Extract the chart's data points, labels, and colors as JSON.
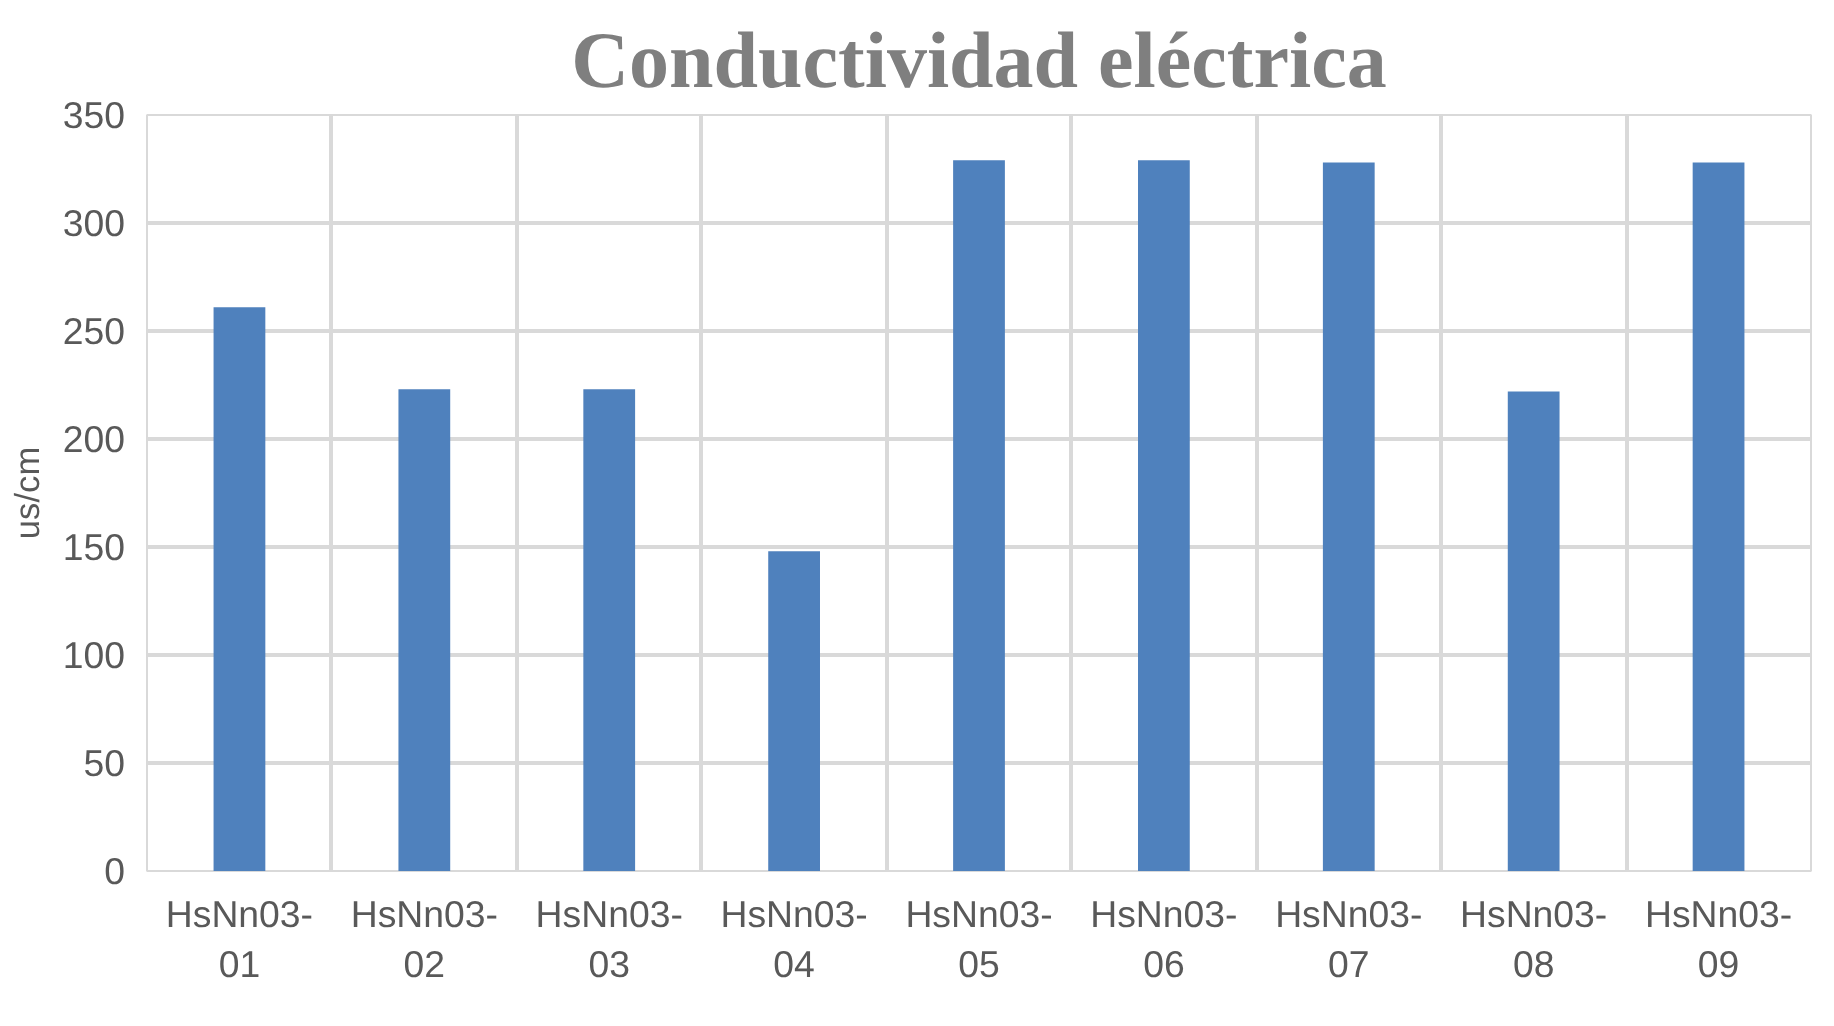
{
  "chart_data": {
    "type": "bar",
    "title": "Conductividad eléctrica",
    "ylabel": "us/cm",
    "categories": [
      "HsNn03-01",
      "HsNn03-02",
      "HsNn03-03",
      "HsNn03-04",
      "HsNn03-05",
      "HsNn03-06",
      "HsNn03-07",
      "HsNn03-08",
      "HsNn03-09"
    ],
    "values": [
      261,
      223,
      223,
      148,
      329,
      329,
      328,
      222,
      328
    ],
    "color": "#4f81bd",
    "ylim": [
      0,
      350
    ],
    "yticks": [
      0,
      50,
      100,
      150,
      200,
      250,
      300,
      350
    ],
    "grid": true
  }
}
